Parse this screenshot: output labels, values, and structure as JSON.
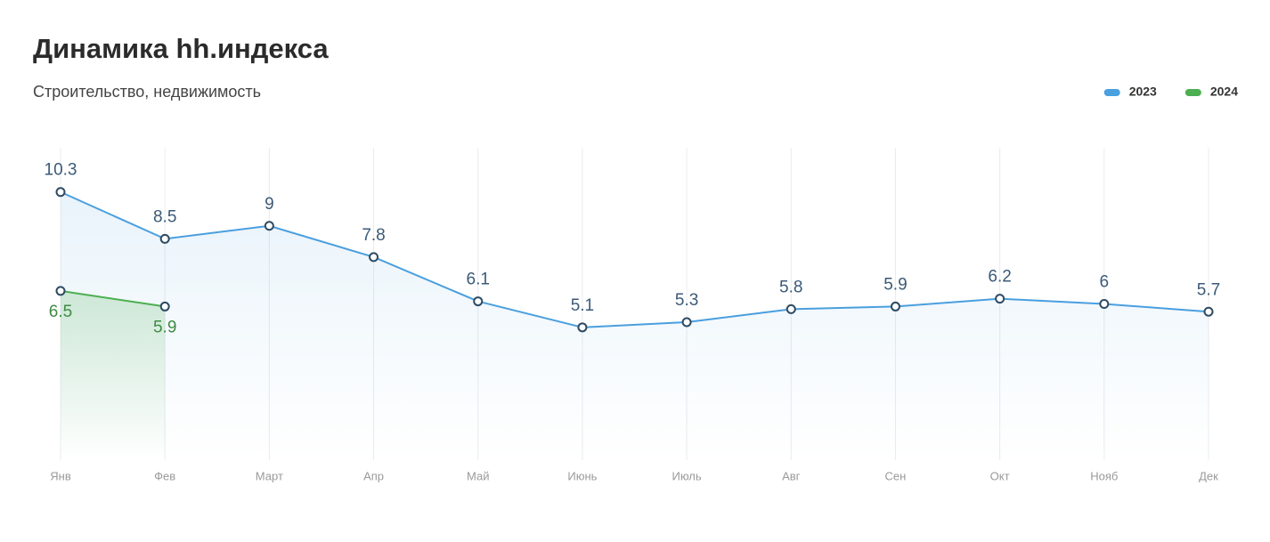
{
  "chart_data": {
    "type": "line",
    "title": "Динамика hh.индекса",
    "subtitle": "Строительство, недвижимость",
    "categories": [
      "Янв",
      "Фев",
      "Март",
      "Апр",
      "Май",
      "Июнь",
      "Июль",
      "Авг",
      "Сен",
      "Окт",
      "Нояб",
      "Дек"
    ],
    "series": [
      {
        "name": "2023",
        "color": "#4a9fde",
        "label_color": "#3b5a78",
        "label_position": "above",
        "values": [
          10.3,
          8.5,
          9,
          7.8,
          6.1,
          5.1,
          5.3,
          5.8,
          5.9,
          6.2,
          6,
          5.7
        ]
      },
      {
        "name": "2024",
        "color": "#4caf50",
        "label_color": "#3f8a42",
        "label_position": "below",
        "values": [
          6.5,
          5.9,
          null,
          null,
          null,
          null,
          null,
          null,
          null,
          null,
          null,
          null
        ]
      }
    ],
    "ylim": [
      0,
      12
    ],
    "grid": true,
    "legend": "top-right"
  }
}
